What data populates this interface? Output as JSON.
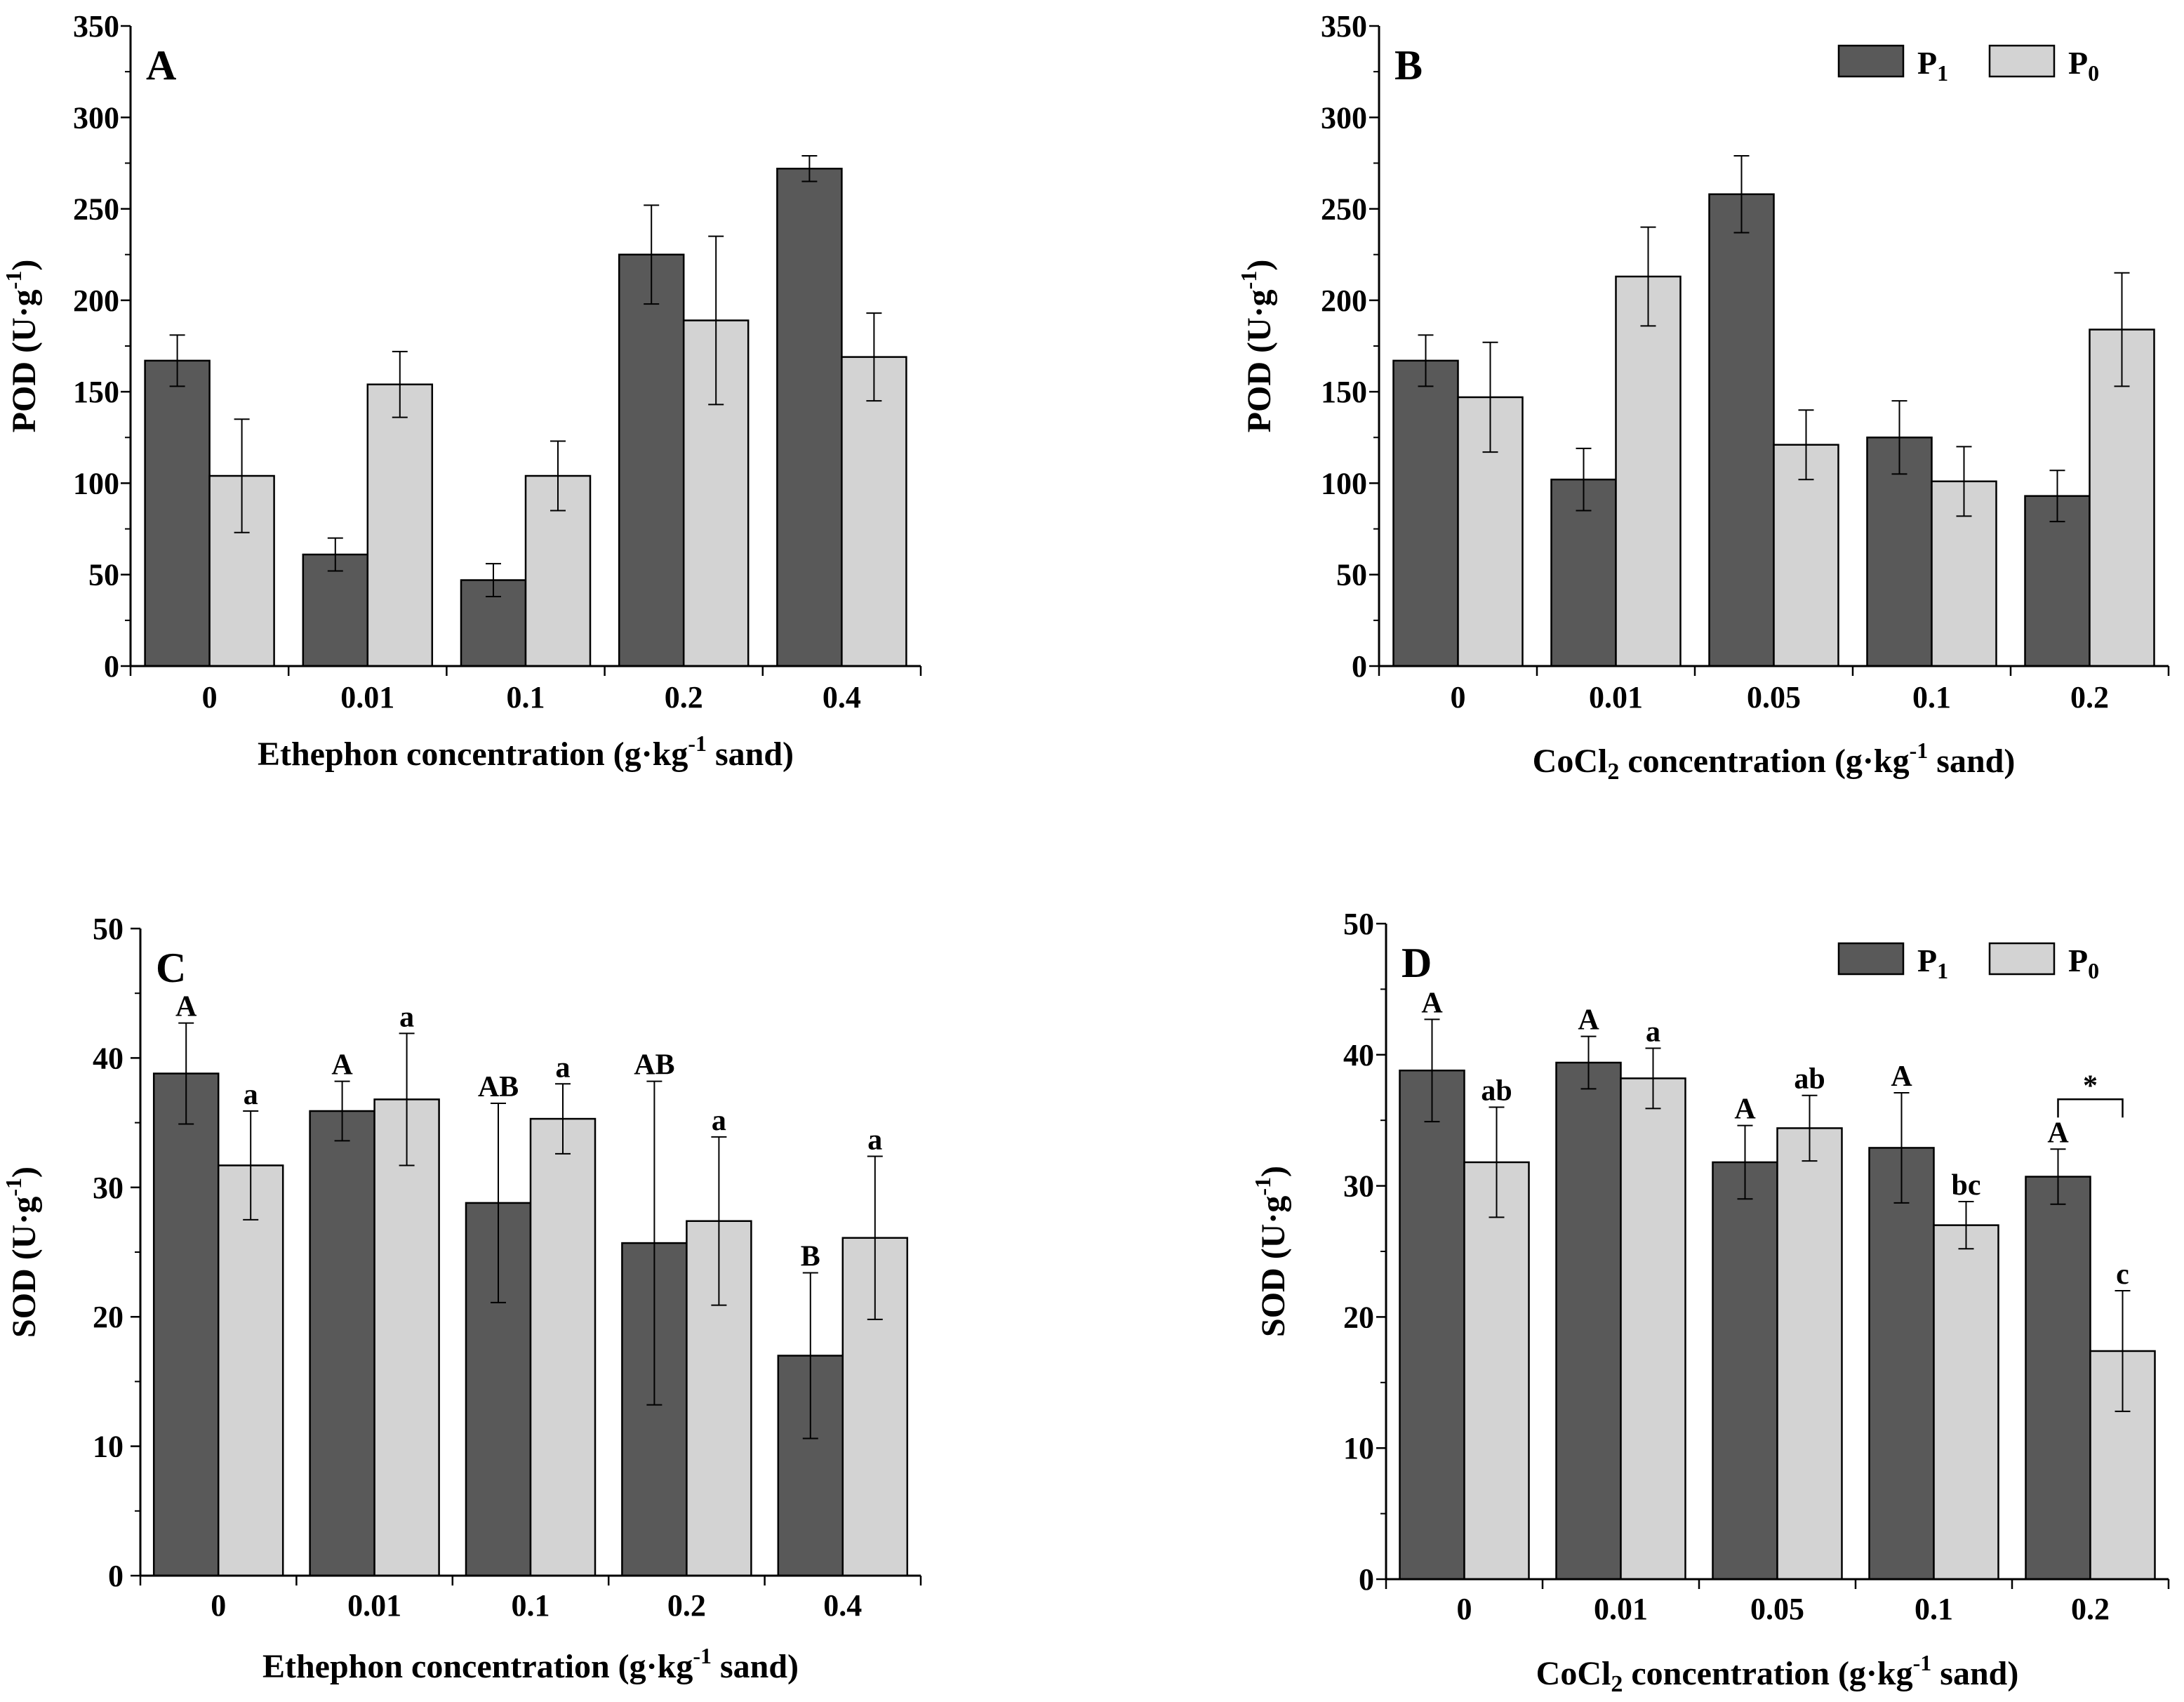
{
  "figure": {
    "legend": {
      "p1_main": "P",
      "p1_sub": "1",
      "p0_main": "P",
      "p0_sub": "0"
    },
    "colors": {
      "p1": "#595959",
      "p0": "#d3d3d3",
      "axis": "#000000"
    }
  },
  "chart_data": [
    {
      "id": "A",
      "type": "bar",
      "panel_label": "A",
      "categories": [
        "0",
        "0.01",
        "0.1",
        "0.2",
        "0.4"
      ],
      "series": [
        {
          "name": "P1",
          "values": [
            167,
            61,
            47,
            225,
            272
          ],
          "errors": [
            14,
            9,
            9,
            27,
            7
          ],
          "labels": [
            "",
            "",
            "",
            "",
            ""
          ]
        },
        {
          "name": "P0",
          "values": [
            104,
            154,
            104,
            189,
            169
          ],
          "errors": [
            31,
            18,
            19,
            46,
            24
          ],
          "labels": [
            "",
            "",
            "",
            "",
            ""
          ]
        }
      ],
      "ylim": [
        0,
        350
      ],
      "yticks": [
        0,
        50,
        100,
        150,
        200,
        250,
        300,
        350
      ],
      "ylabel": {
        "main": "POD (U·g",
        "sup": "-1",
        "tail": ")"
      },
      "xlabel": {
        "pre": "Ethephon concentration (g·kg",
        "sup": "-1",
        "post": " sand)"
      },
      "legend": false,
      "bracket": null
    },
    {
      "id": "B",
      "type": "bar",
      "panel_label": "B",
      "categories": [
        "0",
        "0.01",
        "0.05",
        "0.1",
        "0.2"
      ],
      "series": [
        {
          "name": "P1",
          "values": [
            167,
            102,
            258,
            125,
            93
          ],
          "errors": [
            14,
            17,
            21,
            20,
            14
          ],
          "labels": [
            "",
            "",
            "",
            "",
            ""
          ]
        },
        {
          "name": "P0",
          "values": [
            147,
            213,
            121,
            101,
            184
          ],
          "errors": [
            30,
            27,
            19,
            19,
            31
          ],
          "labels": [
            "",
            "",
            "",
            "",
            ""
          ]
        }
      ],
      "ylim": [
        0,
        350
      ],
      "yticks": [
        0,
        50,
        100,
        150,
        200,
        250,
        300,
        350
      ],
      "ylabel": {
        "main": "POD (U·g",
        "sup": "-1",
        "tail": ")"
      },
      "xlabel": {
        "pre": "CoCl",
        "sub": "2",
        "post": " concentration (g·kg",
        "sup": "-1",
        "end": " sand)"
      },
      "legend": true,
      "bracket": null
    },
    {
      "id": "C",
      "type": "bar",
      "panel_label": "C",
      "categories": [
        "0",
        "0.01",
        "0.1",
        "0.2",
        "0.4"
      ],
      "series": [
        {
          "name": "P1",
          "values": [
            38.8,
            35.9,
            28.8,
            25.7,
            17.0
          ],
          "errors": [
            3.9,
            2.3,
            7.7,
            12.5,
            6.4
          ],
          "labels": [
            "A",
            "A",
            "AB",
            "AB",
            "B"
          ]
        },
        {
          "name": "P0",
          "values": [
            31.7,
            36.8,
            35.3,
            27.4,
            26.1
          ],
          "errors": [
            4.2,
            5.1,
            2.7,
            6.5,
            6.3
          ],
          "labels": [
            "a",
            "a",
            "a",
            "a",
            "a"
          ]
        }
      ],
      "ylim": [
        0,
        50
      ],
      "yticks": [
        0,
        10,
        20,
        30,
        40,
        50
      ],
      "ylabel": {
        "main": "SOD (U·g",
        "sup": "-1",
        "tail": ")"
      },
      "xlabel": {
        "pre": "Ethephon concentration (g·kg",
        "sup": "-1",
        "post": " sand)"
      },
      "legend": false,
      "bracket": null
    },
    {
      "id": "D",
      "type": "bar",
      "panel_label": "D",
      "categories": [
        "0",
        "0.01",
        "0.05",
        "0.1",
        "0.2"
      ],
      "series": [
        {
          "name": "P1",
          "values": [
            38.8,
            39.4,
            31.8,
            32.9,
            30.7
          ],
          "errors": [
            3.9,
            2.0,
            2.8,
            4.2,
            2.1
          ],
          "labels": [
            "A",
            "A",
            "A",
            "A",
            "A"
          ]
        },
        {
          "name": "P0",
          "values": [
            31.8,
            38.2,
            34.4,
            27.0,
            17.4
          ],
          "errors": [
            4.2,
            2.3,
            2.5,
            1.8,
            4.6
          ],
          "labels": [
            "ab",
            "a",
            "ab",
            "bc",
            "c"
          ]
        }
      ],
      "ylim": [
        0,
        50
      ],
      "yticks": [
        0,
        10,
        20,
        30,
        40,
        50
      ],
      "ylabel": {
        "main": "SOD (U·g",
        "sup": "-1",
        "tail": ")"
      },
      "xlabel": {
        "pre": "CoCl",
        "sub": "2",
        "post": " concentration (g·kg",
        "sup": "-1",
        "end": " sand)"
      },
      "legend": true,
      "bracket": {
        "category": 4,
        "label": "*"
      }
    }
  ]
}
